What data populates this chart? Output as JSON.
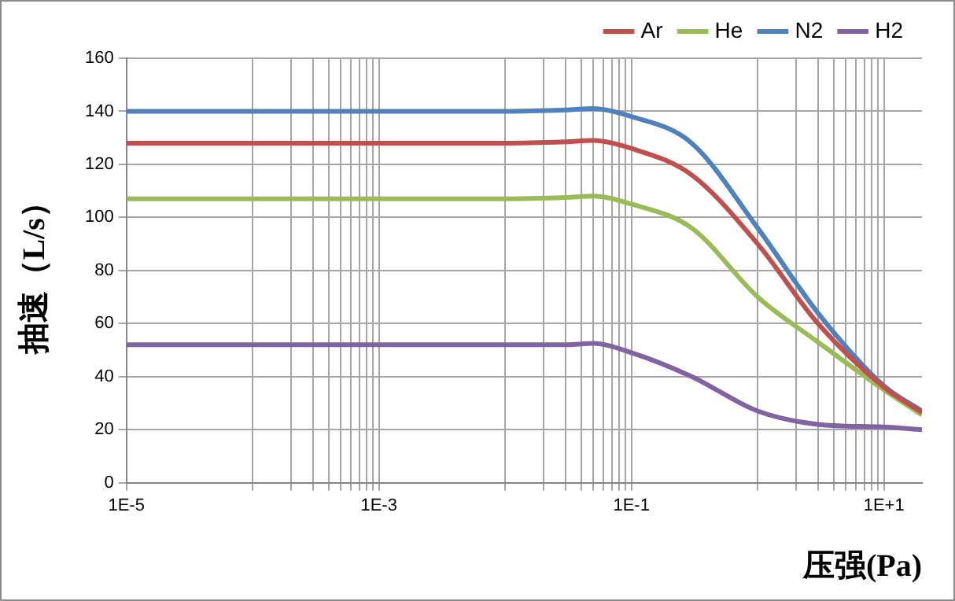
{
  "chart_data": {
    "type": "line",
    "xlabel": "压强(Pa)",
    "ylabel": "抽速（L/s）",
    "x": [
      1e-05,
      0.0001,
      0.001,
      0.01,
      0.03,
      0.05,
      0.1,
      0.3,
      1,
      3,
      10,
      20
    ],
    "series": [
      {
        "name": "Ar",
        "color": "#c0504d",
        "values": [
          128,
          128,
          128,
          128,
          128.5,
          129,
          126,
          116,
          90,
          60,
          36,
          26.5
        ]
      },
      {
        "name": "He",
        "color": "#9bbb59",
        "values": [
          107,
          107,
          107,
          107,
          107.5,
          108,
          105,
          96,
          70,
          53,
          35,
          25.5
        ]
      },
      {
        "name": "N2",
        "color": "#4f81bd",
        "values": [
          140,
          140,
          140,
          140,
          140.5,
          141,
          138,
          128,
          96,
          64,
          36.5,
          27
        ]
      },
      {
        "name": "H2",
        "color": "#8064a2",
        "values": [
          52,
          52,
          52,
          52,
          52,
          52.5,
          49,
          40,
          27,
          22,
          21,
          20
        ]
      }
    ],
    "log": "x",
    "xlim": [
      1e-05,
      20
    ],
    "xticks": [
      {
        "value": 1e-05,
        "label": "1E-5"
      },
      {
        "value": 0.0001,
        "label": null
      },
      {
        "value": 0.0002,
        "label": null
      },
      {
        "value": 0.0003,
        "label": null
      },
      {
        "value": 0.0004,
        "label": null
      },
      {
        "value": 0.0005,
        "label": null
      },
      {
        "value": 0.0006,
        "label": null
      },
      {
        "value": 0.0007,
        "label": null
      },
      {
        "value": 0.0008,
        "label": null
      },
      {
        "value": 0.0009,
        "label": null
      },
      {
        "value": 0.001,
        "label": "1E-3"
      },
      {
        "value": 0.01,
        "label": null
      },
      {
        "value": 0.02,
        "label": null
      },
      {
        "value": 0.03,
        "label": null
      },
      {
        "value": 0.04,
        "label": null
      },
      {
        "value": 0.05,
        "label": null
      },
      {
        "value": 0.06,
        "label": null
      },
      {
        "value": 0.07,
        "label": null
      },
      {
        "value": 0.08,
        "label": null
      },
      {
        "value": 0.09,
        "label": null
      },
      {
        "value": 0.1,
        "label": "1E-1"
      },
      {
        "value": 1,
        "label": null
      },
      {
        "value": 2,
        "label": null
      },
      {
        "value": 3,
        "label": null
      },
      {
        "value": 4,
        "label": null
      },
      {
        "value": 5,
        "label": null
      },
      {
        "value": 6,
        "label": null
      },
      {
        "value": 7,
        "label": null
      },
      {
        "value": 8,
        "label": null
      },
      {
        "value": 9,
        "label": null
      },
      {
        "value": 10,
        "label": "1E+1"
      }
    ],
    "ylim": [
      0,
      160
    ],
    "yticks": [
      0,
      20,
      40,
      60,
      80,
      100,
      120,
      140,
      160
    ],
    "grid": true,
    "legend": "top right",
    "marker": "none",
    "line_style": "solid"
  }
}
